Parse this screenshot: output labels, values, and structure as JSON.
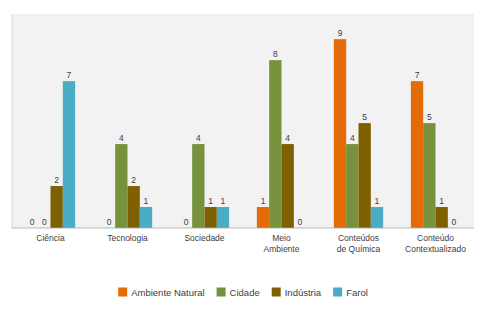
{
  "chart_data": {
    "type": "bar",
    "categories": [
      "Ciência",
      "Tecnologia",
      "Sociedade",
      "Meio\nAmbiente",
      "Conteúdos\nde Química",
      "Conteúdo\nContextualizado"
    ],
    "series": [
      {
        "name": "Ambiente Natural",
        "color": "#E36C09",
        "values": [
          0,
          0,
          0,
          1,
          9,
          7
        ]
      },
      {
        "name": "Cidade",
        "color": "#76923C",
        "values": [
          0,
          4,
          4,
          8,
          4,
          5
        ]
      },
      {
        "name": "Indústria",
        "color": "#7F6000",
        "values": [
          2,
          2,
          1,
          4,
          5,
          1
        ]
      },
      {
        "name": "Farol",
        "color": "#4BACC6",
        "values": [
          7,
          1,
          1,
          0,
          1,
          0
        ]
      }
    ],
    "ylim": [
      0,
      10.2
    ],
    "yticks": [],
    "grid": false,
    "tick_labels": "x",
    "data_labels": true,
    "legend": "bottom"
  }
}
